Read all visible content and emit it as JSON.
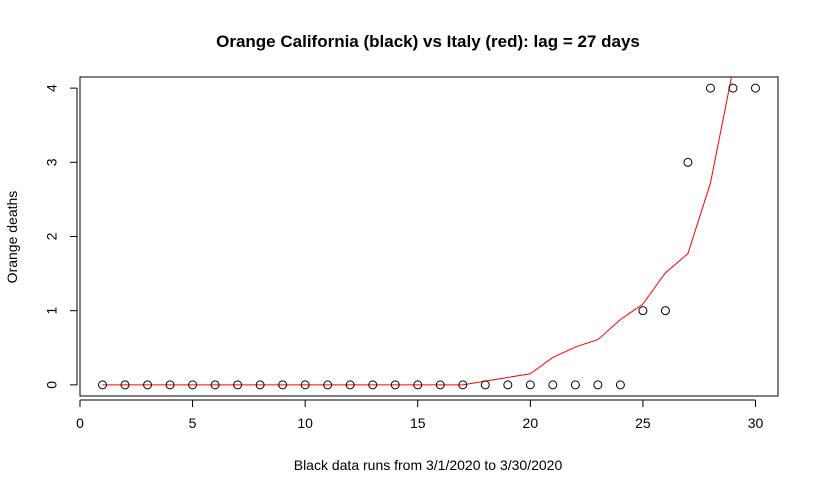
{
  "chart_data": {
    "type": "scatter",
    "title": "Orange California (black) vs Italy (red): lag = 27 days",
    "xlabel": "Black data runs from  3/1/2020  to  3/30/2020",
    "ylabel": "Orange deaths",
    "xlim": [
      0,
      31
    ],
    "ylim": [
      -0.15,
      4.15
    ],
    "x_ticks": [
      0,
      5,
      10,
      15,
      20,
      25,
      30
    ],
    "y_ticks": [
      0,
      1,
      2,
      3,
      4
    ],
    "x_tick_labels": [
      "0",
      "5",
      "10",
      "15",
      "20",
      "25",
      "30"
    ],
    "y_tick_labels": [
      "0",
      "1",
      "2",
      "3",
      "4"
    ],
    "grid": false,
    "colors": {
      "black_points": "#000000",
      "red_line": "#ff0000",
      "axes": "#000000"
    },
    "series": [
      {
        "type": "scatter",
        "x": [
          1,
          2,
          3,
          4,
          5,
          6,
          7,
          8,
          9,
          10,
          11,
          12,
          13,
          14,
          15,
          16,
          17,
          18,
          19,
          20,
          21,
          22,
          23,
          24,
          25,
          26,
          27,
          28,
          29,
          30
        ],
        "y": [
          0,
          0,
          0,
          0,
          0,
          0,
          0,
          0,
          0,
          0,
          0,
          0,
          0,
          0,
          0,
          0,
          0,
          0,
          0,
          0,
          0,
          0,
          0,
          0,
          1,
          1,
          3,
          4,
          4,
          4
        ]
      },
      {
        "type": "line",
        "x": [
          1,
          2,
          3,
          4,
          5,
          6,
          7,
          8,
          9,
          10,
          11,
          12,
          13,
          14,
          15,
          16,
          17,
          18,
          19,
          20,
          21,
          22,
          23,
          24,
          25,
          26,
          27,
          28,
          29,
          30
        ],
        "y": [
          0,
          0,
          0,
          0,
          0,
          0,
          0,
          0,
          0,
          0,
          0,
          0,
          0,
          0,
          0,
          0,
          0,
          0.05,
          0.1,
          0.15,
          0.37,
          0.51,
          0.61,
          0.88,
          1.09,
          1.51,
          1.77,
          2.72,
          4.25,
          4.6
        ]
      }
    ]
  }
}
